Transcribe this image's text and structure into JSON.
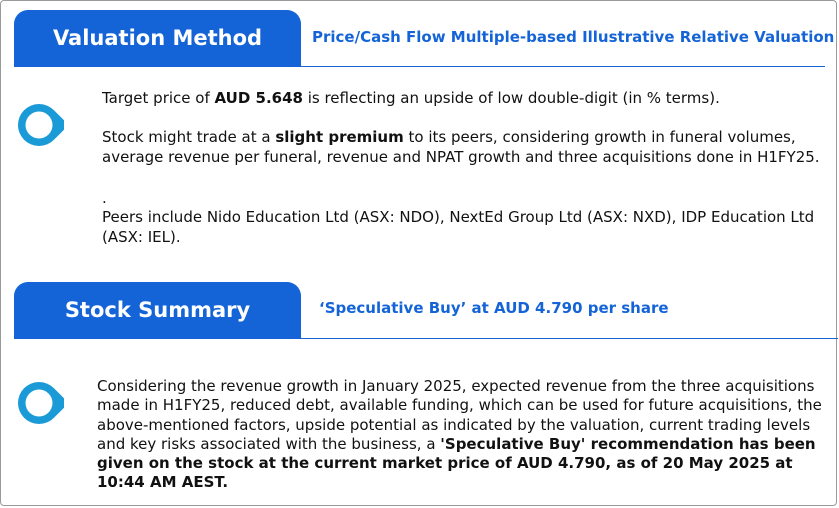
{
  "valuation": {
    "tab_label": "Valuation Method",
    "subtitle": "Price/Cash Flow Multiple-based Illustrative Relative Valuation",
    "target": {
      "prefix": "Target price of ",
      "price": "AUD 5.648",
      "suffix": " is reflecting an upside of low double-digit (in % terms)."
    },
    "premium": {
      "prefix": "Stock might trade at a ",
      "emphasis": "slight premium",
      "suffix": " to its peers, considering growth in funeral volumes, average revenue per funeral, revenue and NPAT growth and three acquisitions done in H1FY25."
    },
    "dot": ".",
    "peers": "Peers include Nido Education Ltd (ASX: NDO), NextEd Group Ltd (ASX: NXD), IDP Education Ltd (ASX: IEL)."
  },
  "stock_summary": {
    "tab_label": "Stock Summary",
    "subtitle": "‘Speculative Buy’ at AUD 4.790 per share",
    "body_plain": "Considering the revenue growth in January 2025, expected revenue from the three acquisitions made in H1FY25, reduced debt, available funding, which can be used for future acquisitions, the above-mentioned factors, upside potential as indicated by the valuation, current trading levels and key risks associated with the business, a ",
    "body_bold": "'Speculative Buy' recommendation has been given on the stock at the current market price of AUD 4.790, as of 20 May 2025 at 10:44 AM AEST."
  },
  "colors": {
    "accent": "#1464d8",
    "marker_blue": "#1a9ad6"
  },
  "icons": {
    "marker": "location-pin-icon"
  }
}
